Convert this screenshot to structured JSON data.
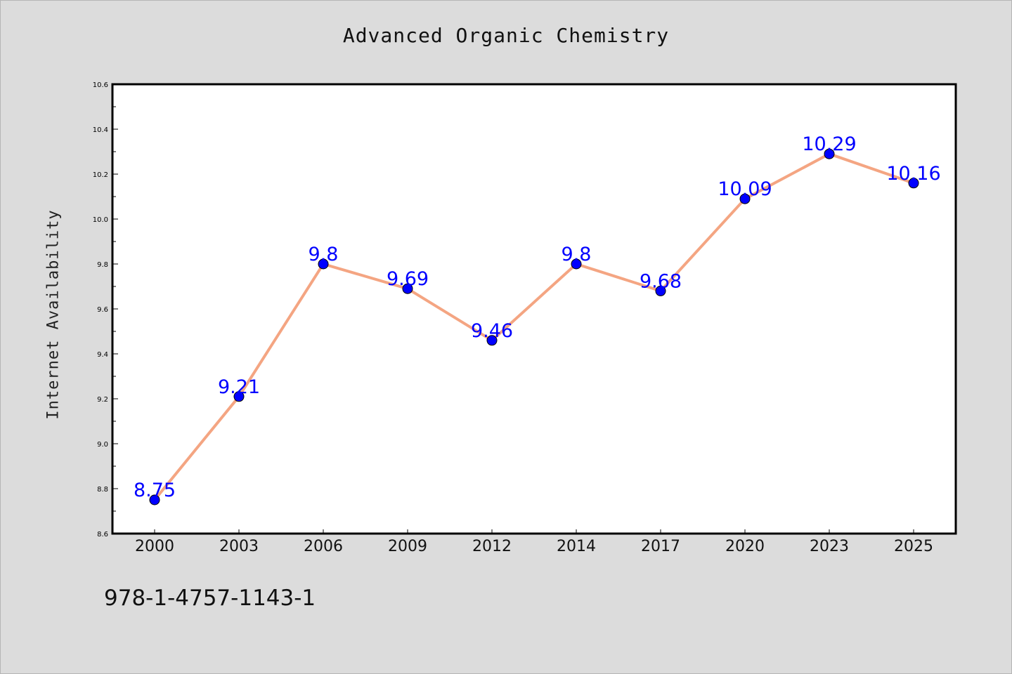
{
  "chart_data": {
    "type": "line",
    "title": "Advanced Organic Chemistry",
    "xlabel": "",
    "ylabel": "Internet Availability",
    "categories": [
      "2000",
      "2003",
      "2006",
      "2009",
      "2012",
      "2014",
      "2017",
      "2020",
      "2023",
      "2025"
    ],
    "series": [
      {
        "values": [
          8.75,
          9.21,
          9.8,
          9.69,
          9.46,
          9.8,
          9.68,
          10.09,
          10.29,
          10.16
        ],
        "labels": [
          "8.75",
          "9.21",
          "9.8",
          "9.69",
          "9.46",
          "9.8",
          "9.68",
          "10.09",
          "10.29",
          "10.16"
        ]
      }
    ],
    "ylim": [
      8.6,
      10.6
    ],
    "yticks": [
      "8.6",
      "8.8",
      "9.0",
      "9.2",
      "9.4",
      "9.6",
      "9.8",
      "10.0",
      "10.2",
      "10.4",
      "10.6"
    ],
    "grid": false,
    "legend": "none",
    "line_color": "#f4a582",
    "marker_color": "#0000ff",
    "label_color": "#0000ff"
  },
  "footer": {
    "isbn": "978-1-4757-1143-1"
  }
}
